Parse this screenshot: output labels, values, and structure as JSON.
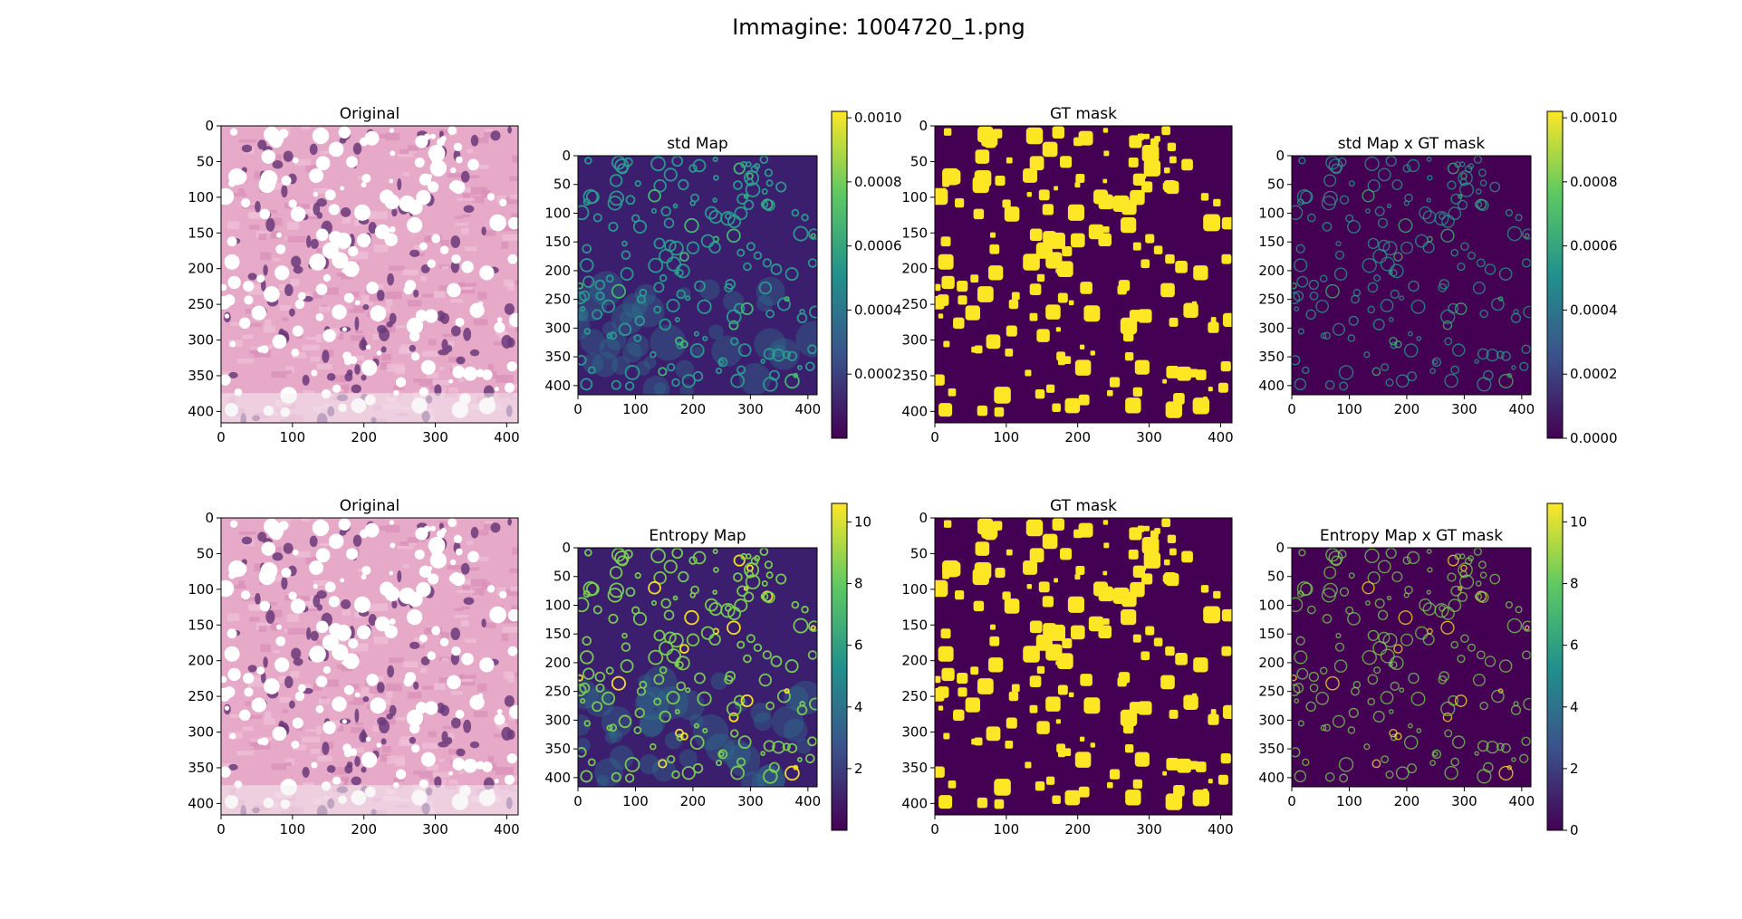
{
  "figure": {
    "suptitle": "Immagine: 1004720_1.png"
  },
  "colors": {
    "viridis_low": "#440154",
    "viridis_mid": "#21918c",
    "viridis_high": "#fde725",
    "tissue_pink": "#e7a9c8",
    "nucleus_purple": "#6a3a7a"
  },
  "chart_data": [
    {
      "type": "heatmap",
      "title": "Original",
      "content": "H&E histology image",
      "x_ticks": [
        "0",
        "100",
        "200",
        "300",
        "400"
      ],
      "y_ticks": [
        "0",
        "50",
        "100",
        "150",
        "200",
        "250",
        "300",
        "350",
        "400"
      ],
      "xlim": [
        0,
        416
      ],
      "ylim": [
        416,
        0
      ]
    },
    {
      "type": "heatmap",
      "title": "std Map",
      "colormap": "viridis",
      "x_ticks": [
        "0",
        "100",
        "200",
        "300",
        "400"
      ],
      "y_ticks": [
        "0",
        "50",
        "100",
        "150",
        "200",
        "250",
        "300",
        "350",
        "400"
      ],
      "xlim": [
        0,
        416
      ],
      "ylim": [
        416,
        0
      ],
      "colorbar": {
        "ticks": [
          "0.0002",
          "0.0004",
          "0.0006",
          "0.0008",
          "0.0010"
        ],
        "range": [
          0.0,
          0.00102
        ]
      }
    },
    {
      "type": "heatmap",
      "title": "GT mask",
      "colormap": "viridis",
      "content": "binary mask",
      "x_ticks": [
        "0",
        "100",
        "200",
        "300",
        "400"
      ],
      "y_ticks": [
        "0",
        "50",
        "100",
        "150",
        "200",
        "250",
        "300",
        "350",
        "400"
      ],
      "xlim": [
        0,
        416
      ],
      "ylim": [
        416,
        0
      ]
    },
    {
      "type": "heatmap",
      "title": "std Map x GT mask",
      "colormap": "viridis",
      "x_ticks": [
        "0",
        "100",
        "200",
        "300",
        "400"
      ],
      "y_ticks": [
        "0",
        "50",
        "100",
        "150",
        "200",
        "250",
        "300",
        "350",
        "400"
      ],
      "xlim": [
        0,
        416
      ],
      "ylim": [
        416,
        0
      ],
      "colorbar": {
        "ticks": [
          "0.0000",
          "0.0002",
          "0.0004",
          "0.0006",
          "0.0008",
          "0.0010"
        ],
        "range": [
          0.0,
          0.00102
        ]
      }
    },
    {
      "type": "heatmap",
      "title": "Original",
      "content": "H&E histology image",
      "x_ticks": [
        "0",
        "100",
        "200",
        "300",
        "400"
      ],
      "y_ticks": [
        "0",
        "50",
        "100",
        "150",
        "200",
        "250",
        "300",
        "350",
        "400"
      ],
      "xlim": [
        0,
        416
      ],
      "ylim": [
        416,
        0
      ]
    },
    {
      "type": "heatmap",
      "title": "Entropy Map",
      "colormap": "viridis",
      "x_ticks": [
        "0",
        "100",
        "200",
        "300",
        "400"
      ],
      "y_ticks": [
        "0",
        "50",
        "100",
        "150",
        "200",
        "250",
        "300",
        "350",
        "400"
      ],
      "xlim": [
        0,
        416
      ],
      "ylim": [
        416,
        0
      ],
      "colorbar": {
        "ticks": [
          "2",
          "4",
          "6",
          "8",
          "10"
        ],
        "range": [
          0.0,
          10.6
        ]
      }
    },
    {
      "type": "heatmap",
      "title": "GT mask",
      "colormap": "viridis",
      "content": "binary mask",
      "x_ticks": [
        "0",
        "100",
        "200",
        "300",
        "400"
      ],
      "y_ticks": [
        "0",
        "50",
        "100",
        "150",
        "200",
        "250",
        "300",
        "350",
        "400"
      ],
      "xlim": [
        0,
        416
      ],
      "ylim": [
        416,
        0
      ]
    },
    {
      "type": "heatmap",
      "title": "Entropy Map x GT mask",
      "colormap": "viridis",
      "x_ticks": [
        "0",
        "100",
        "200",
        "300",
        "400"
      ],
      "y_ticks": [
        "0",
        "50",
        "100",
        "150",
        "200",
        "250",
        "300",
        "350",
        "400"
      ],
      "xlim": [
        0,
        416
      ],
      "ylim": [
        416,
        0
      ],
      "colorbar": {
        "ticks": [
          "0",
          "2",
          "4",
          "6",
          "8",
          "10"
        ],
        "range": [
          0.0,
          10.6
        ]
      }
    }
  ]
}
